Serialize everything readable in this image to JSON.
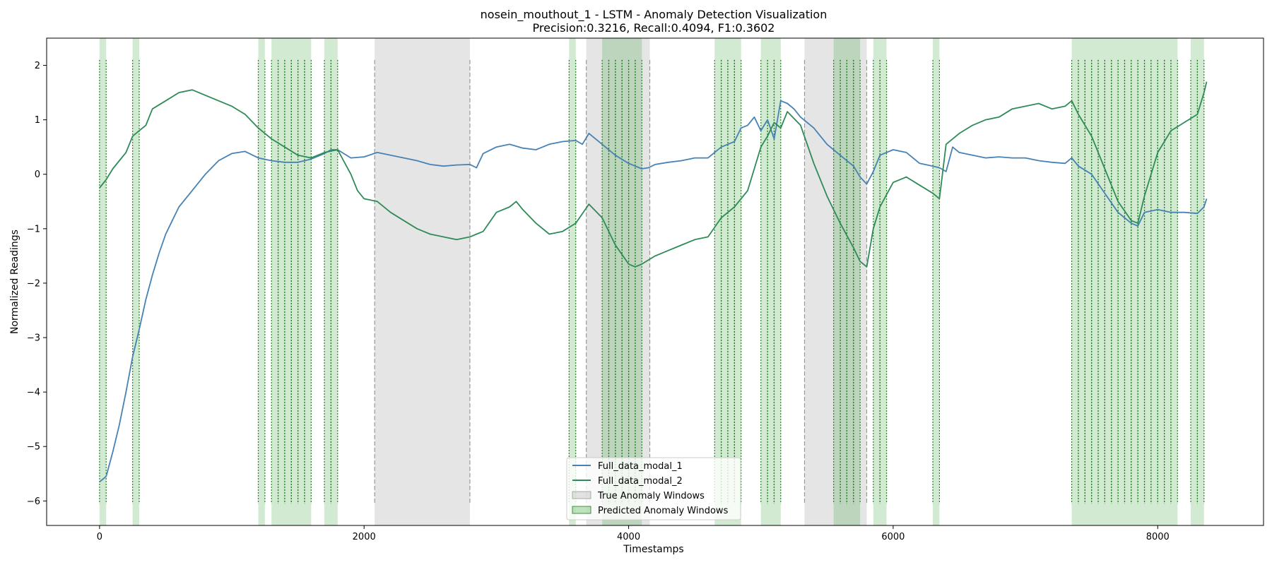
{
  "chart_data": {
    "type": "line",
    "title": "nosein_mouthout_1 - LSTM - Anomaly Detection Visualization",
    "subtitle": "Precision:0.3216, Recall:0.4094, F1:0.3602",
    "xlabel": "Timestamps",
    "ylabel": "Normalized Readings",
    "xlim": [
      -400,
      8800
    ],
    "ylim": [
      -6.45,
      2.5
    ],
    "xticks": [
      0,
      2000,
      4000,
      6000,
      8000
    ],
    "yticks": [
      -6,
      -5,
      -4,
      -3,
      -2,
      -1,
      0,
      1,
      2
    ],
    "grid": false,
    "legend": {
      "placement": "lower-center",
      "entries": [
        "Full_data_modal_1",
        "Full_data_modal_2",
        "True Anomaly Windows",
        "Predicted Anomaly Windows"
      ]
    },
    "colors": {
      "modal_1": "#4682b4",
      "modal_2": "#2e8b57",
      "true_window": "#bfbfbf",
      "predicted_window": "#2ca02c",
      "predicted_line": "#1f7a1f",
      "true_line": "#999999"
    },
    "series": [
      {
        "name": "Full_data_modal_1",
        "x": [
          0,
          50,
          100,
          150,
          200,
          250,
          300,
          350,
          400,
          450,
          500,
          550,
          600,
          700,
          800,
          900,
          1000,
          1100,
          1200,
          1300,
          1400,
          1500,
          1600,
          1700,
          1750,
          1800,
          1900,
          2000,
          2100,
          2200,
          2300,
          2400,
          2500,
          2600,
          2700,
          2800,
          2850,
          2900,
          3000,
          3100,
          3200,
          3300,
          3400,
          3500,
          3600,
          3650,
          3700,
          3800,
          3900,
          4000,
          4100,
          4150,
          4200,
          4300,
          4400,
          4500,
          4600,
          4700,
          4800,
          4850,
          4900,
          4950,
          5000,
          5050,
          5100,
          5150,
          5200,
          5250,
          5300,
          5400,
          5500,
          5600,
          5700,
          5750,
          5800,
          5850,
          5900,
          6000,
          6100,
          6200,
          6300,
          6350,
          6400,
          6450,
          6500,
          6600,
          6700,
          6800,
          6900,
          7000,
          7100,
          7200,
          7300,
          7350,
          7400,
          7500,
          7600,
          7700,
          7800,
          7850,
          7900,
          8000,
          8100,
          8200,
          8300,
          8350,
          8370
        ],
        "values": [
          -5.65,
          -5.55,
          -5.1,
          -4.6,
          -4.0,
          -3.35,
          -2.85,
          -2.3,
          -1.85,
          -1.45,
          -1.1,
          -0.85,
          -0.6,
          -0.3,
          0.0,
          0.25,
          0.38,
          0.42,
          0.3,
          0.25,
          0.22,
          0.22,
          0.28,
          0.38,
          0.45,
          0.45,
          0.3,
          0.32,
          0.4,
          0.35,
          0.3,
          0.25,
          0.18,
          0.15,
          0.17,
          0.18,
          0.12,
          0.38,
          0.5,
          0.55,
          0.48,
          0.45,
          0.55,
          0.6,
          0.62,
          0.55,
          0.75,
          0.55,
          0.35,
          0.2,
          0.1,
          0.12,
          0.18,
          0.22,
          0.25,
          0.3,
          0.3,
          0.5,
          0.6,
          0.85,
          0.9,
          1.05,
          0.8,
          1.0,
          0.65,
          1.35,
          1.3,
          1.2,
          1.05,
          0.85,
          0.55,
          0.35,
          0.15,
          -0.05,
          -0.18,
          0.05,
          0.35,
          0.45,
          0.4,
          0.2,
          0.15,
          0.12,
          0.05,
          0.5,
          0.4,
          0.35,
          0.3,
          0.32,
          0.3,
          0.3,
          0.25,
          0.22,
          0.2,
          0.3,
          0.15,
          0.0,
          -0.35,
          -0.7,
          -0.9,
          -0.95,
          -0.7,
          -0.65,
          -0.7,
          -0.7,
          -0.72,
          -0.6,
          -0.45
        ]
      },
      {
        "name": "Full_data_modal_2",
        "x": [
          0,
          50,
          100,
          150,
          200,
          250,
          300,
          350,
          400,
          500,
          600,
          700,
          800,
          900,
          1000,
          1100,
          1200,
          1300,
          1400,
          1500,
          1600,
          1700,
          1800,
          1900,
          1950,
          2000,
          2100,
          2200,
          2300,
          2400,
          2500,
          2600,
          2700,
          2800,
          2850,
          2900,
          3000,
          3100,
          3150,
          3200,
          3300,
          3400,
          3500,
          3600,
          3700,
          3800,
          3900,
          4000,
          4050,
          4100,
          4200,
          4300,
          4400,
          4500,
          4600,
          4700,
          4800,
          4900,
          5000,
          5050,
          5100,
          5150,
          5200,
          5300,
          5400,
          5500,
          5600,
          5700,
          5750,
          5800,
          5850,
          5900,
          6000,
          6100,
          6200,
          6300,
          6350,
          6400,
          6500,
          6600,
          6700,
          6800,
          6900,
          7000,
          7100,
          7200,
          7300,
          7350,
          7400,
          7500,
          7600,
          7700,
          7800,
          7850,
          7900,
          8000,
          8100,
          8200,
          8300,
          8350,
          8370
        ],
        "values": [
          -0.25,
          -0.1,
          0.1,
          0.25,
          0.4,
          0.7,
          0.8,
          0.9,
          1.2,
          1.35,
          1.5,
          1.55,
          1.45,
          1.35,
          1.25,
          1.1,
          0.85,
          0.65,
          0.5,
          0.35,
          0.3,
          0.4,
          0.45,
          0.0,
          -0.3,
          -0.45,
          -0.5,
          -0.7,
          -0.85,
          -1.0,
          -1.1,
          -1.15,
          -1.2,
          -1.15,
          -1.1,
          -1.05,
          -0.7,
          -0.6,
          -0.5,
          -0.65,
          -0.9,
          -1.1,
          -1.05,
          -0.9,
          -0.55,
          -0.8,
          -1.3,
          -1.65,
          -1.7,
          -1.65,
          -1.5,
          -1.4,
          -1.3,
          -1.2,
          -1.15,
          -0.8,
          -0.6,
          -0.3,
          0.5,
          0.7,
          0.95,
          0.85,
          1.15,
          0.9,
          0.2,
          -0.4,
          -0.9,
          -1.35,
          -1.6,
          -1.7,
          -1.0,
          -0.6,
          -0.15,
          -0.05,
          -0.2,
          -0.35,
          -0.45,
          0.55,
          0.75,
          0.9,
          1.0,
          1.05,
          1.2,
          1.25,
          1.3,
          1.2,
          1.25,
          1.35,
          1.1,
          0.7,
          0.1,
          -0.5,
          -0.85,
          -0.9,
          -0.4,
          0.4,
          0.8,
          0.95,
          1.1,
          1.5,
          1.7
        ]
      }
    ],
    "true_anomaly_windows": [
      [
        2080,
        2800
      ],
      [
        3680,
        4160
      ],
      [
        5330,
        5800
      ]
    ],
    "predicted_anomaly_windows": [
      [
        0,
        50
      ],
      [
        250,
        300
      ],
      [
        1200,
        1250
      ],
      [
        1300,
        1600
      ],
      [
        1700,
        1800
      ],
      [
        3550,
        3600
      ],
      [
        3800,
        4100
      ],
      [
        4650,
        4850
      ],
      [
        5000,
        5150
      ],
      [
        5550,
        5750
      ],
      [
        5850,
        5950
      ],
      [
        6300,
        6350
      ],
      [
        7350,
        8150
      ],
      [
        8250,
        8350
      ]
    ]
  }
}
